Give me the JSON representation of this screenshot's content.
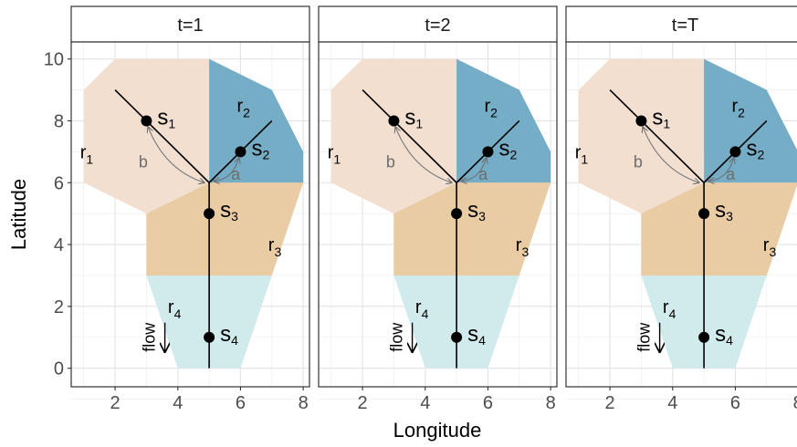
{
  "chart_data": {
    "type": "faceted-map",
    "xlabel": "Longitude",
    "ylabel": "Latitude",
    "xlim": [
      0.6,
      8.2
    ],
    "ylim": [
      -0.6,
      10.55
    ],
    "xticks": [
      2,
      4,
      6,
      8
    ],
    "yticks": [
      0,
      2,
      4,
      6,
      8,
      10
    ],
    "grid": true,
    "panels": [
      "t=1",
      "t=2",
      "t=T"
    ],
    "regions": [
      {
        "name": "r",
        "sub": "1",
        "color": "#f2dfd0",
        "label_at": [
          1,
          7
        ],
        "polygon": [
          [
            1,
            9
          ],
          [
            2,
            10
          ],
          [
            5,
            10
          ],
          [
            5,
            6
          ],
          [
            3,
            5
          ],
          [
            3,
            5
          ],
          [
            1,
            6
          ]
        ]
      },
      {
        "name": "r",
        "sub": "2",
        "color": "#75adc7",
        "label_at": [
          6,
          8.5
        ],
        "polygon": [
          [
            5,
            10
          ],
          [
            7,
            9
          ],
          [
            8,
            7
          ],
          [
            8,
            6
          ],
          [
            5,
            6
          ]
        ]
      },
      {
        "name": "r",
        "sub": "3",
        "color": "#e9cba4",
        "label_at": [
          7,
          4
        ],
        "polygon": [
          [
            3,
            5
          ],
          [
            5,
            6
          ],
          [
            8,
            6
          ],
          [
            7,
            3
          ],
          [
            3,
            3
          ]
        ]
      },
      {
        "name": "r",
        "sub": "4",
        "color": "#d1ebed",
        "label_at": [
          3.8,
          2
        ],
        "polygon": [
          [
            3,
            3
          ],
          [
            7,
            3
          ],
          [
            6,
            0
          ],
          [
            4,
            0
          ]
        ]
      }
    ],
    "streams": [
      [
        [
          2,
          9
        ],
        [
          5,
          6
        ]
      ],
      [
        [
          7,
          8
        ],
        [
          5,
          6
        ]
      ],
      [
        [
          5,
          6
        ],
        [
          5,
          0
        ]
      ]
    ],
    "sites": [
      {
        "name": "s",
        "sub": "1",
        "x": 3,
        "y": 8
      },
      {
        "name": "s",
        "sub": "2",
        "x": 6,
        "y": 7
      },
      {
        "name": "s",
        "sub": "3",
        "x": 5,
        "y": 5
      },
      {
        "name": "s",
        "sub": "4",
        "x": 5,
        "y": 1
      }
    ],
    "annotations": {
      "a": {
        "text": "a",
        "at": [
          5.7,
          6.1
        ]
      },
      "b": {
        "text": "b",
        "at": [
          4.5,
          6.5
        ]
      },
      "flow": {
        "text": "flow",
        "at": [
          3.5,
          1
        ]
      }
    }
  }
}
